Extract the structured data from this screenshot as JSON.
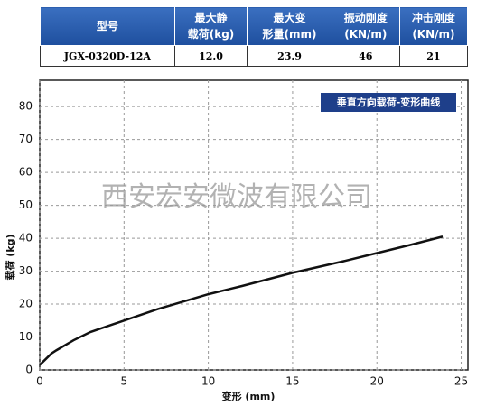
{
  "table": {
    "header": [
      [
        "型号"
      ],
      [
        "最大静",
        "载荷(kg)"
      ],
      [
        "最大变",
        "形量(mm)"
      ],
      [
        "振动刚度",
        "(KN/m)"
      ],
      [
        "冲击刚度",
        "(KN/m)"
      ]
    ],
    "rows": [
      [
        "JGX-0320D-12A",
        "12.0",
        "23.9",
        "46",
        "21"
      ]
    ]
  },
  "watermark": "西安宏安微波有限公司",
  "chart_data": {
    "type": "line",
    "xlabel": "变形 (mm)",
    "ylabel": "载荷 (kg)",
    "x": [
      0,
      0.3,
      0.7,
      1,
      2,
      3,
      5,
      7,
      10,
      12,
      15,
      18,
      20,
      22,
      23.9
    ],
    "series": [
      {
        "name": "垂直方向载荷-变形曲线",
        "color": "#111111",
        "values": [
          1.5,
          3,
          5,
          6,
          9,
          11.5,
          15,
          18.5,
          23,
          25.5,
          29.5,
          33,
          35.5,
          38,
          40.5
        ]
      }
    ],
    "xlim": [
      0,
      25.4
    ],
    "ylim": [
      0,
      88
    ],
    "xticks": [
      0,
      5,
      10,
      15,
      20,
      25
    ],
    "yticks": [
      0,
      10,
      20,
      30,
      40,
      50,
      60,
      70,
      80
    ],
    "grid": true,
    "legend_position": "upper right",
    "legend_color": "#1e3f8a"
  }
}
